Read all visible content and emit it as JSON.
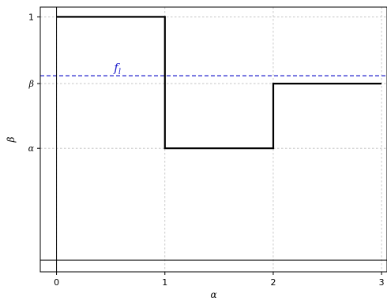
{
  "chart_data": {
    "type": "line",
    "title": "",
    "xlabel": "α",
    "ylabel": "β",
    "xlim": [
      -0.15,
      3.05
    ],
    "ylim": [
      -0.3,
      1.05
    ],
    "y_positions": {
      "alpha": 0.33,
      "beta": 0.66
    },
    "xticks": [
      {
        "value": 0,
        "label": "0"
      },
      {
        "value": 1,
        "label": "1"
      },
      {
        "value": 2,
        "label": "2"
      },
      {
        "value": 3,
        "label": "3"
      }
    ],
    "yticks": [
      {
        "value": 0.33,
        "label": "α"
      },
      {
        "value": 0.66,
        "label": "β"
      },
      {
        "value": 1,
        "label": "1"
      }
    ],
    "grid": true,
    "series": [
      {
        "color": "#000000",
        "style": "solid",
        "points": [
          [
            0,
            1
          ],
          [
            1,
            1
          ],
          [
            1,
            0.33
          ],
          [
            2,
            0.33
          ],
          [
            2,
            0.66
          ],
          [
            3,
            0.66
          ]
        ]
      }
    ],
    "reference_lines": [
      {
        "orientation": "horizontal",
        "y": 0.7,
        "color": "#1f1fcc",
        "style": "dashed"
      },
      {
        "orientation": "vertical",
        "x": 0,
        "color": "#000000",
        "style": "solid"
      },
      {
        "orientation": "horizontal",
        "y": -0.24,
        "color": "#000000",
        "style": "solid"
      }
    ],
    "annotations": [
      {
        "text": "f_l",
        "x": 0.53,
        "y": 0.72,
        "color": "#1f1fcc"
      }
    ]
  }
}
